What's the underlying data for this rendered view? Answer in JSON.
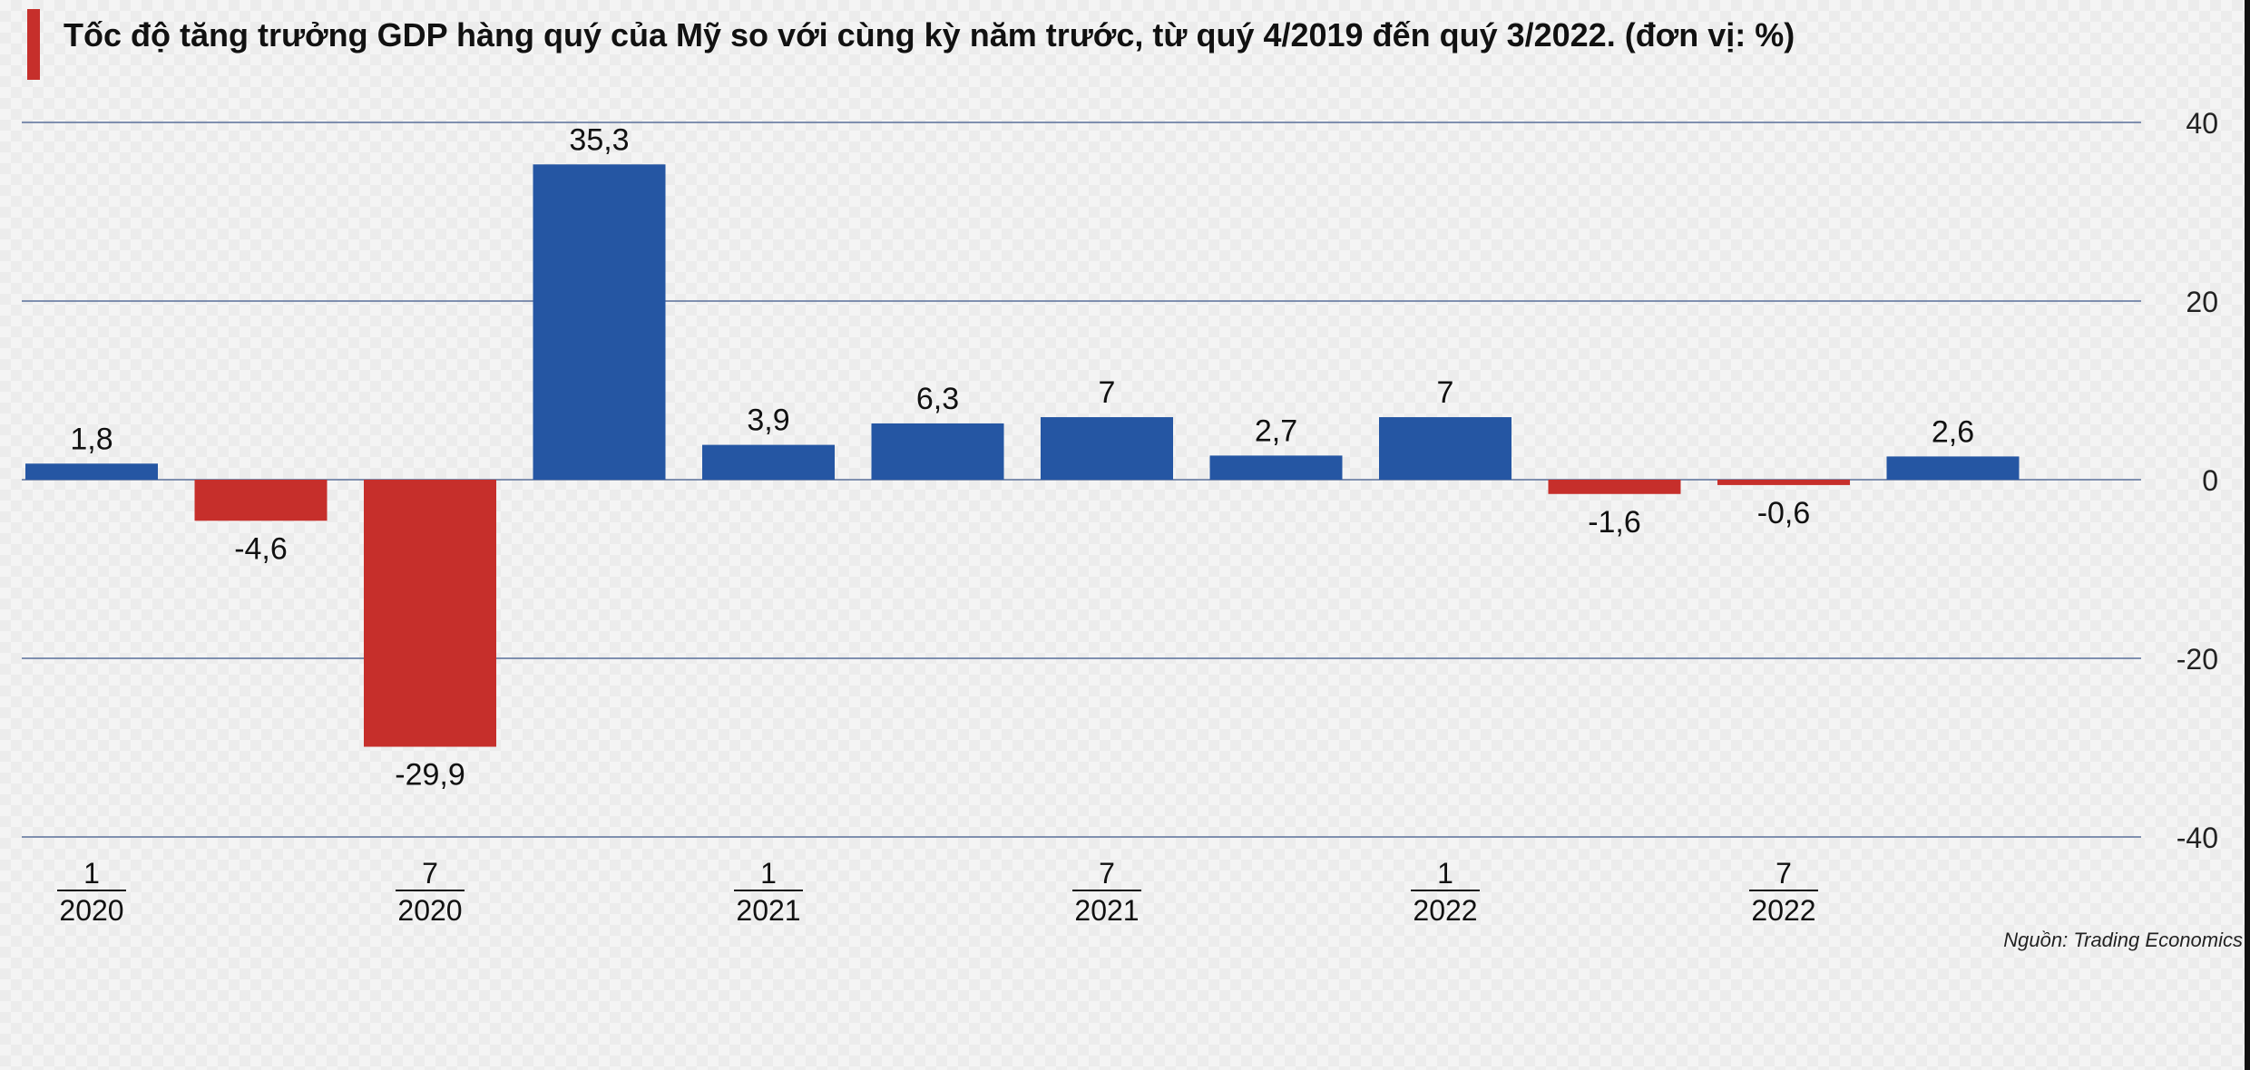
{
  "title": "Tốc độ tăng trưởng GDP hàng quý của Mỹ so với cùng kỳ năm trước, từ quý 4/2019 đến quý 3/2022. (đơn vị: %)",
  "source": "Nguồn: Trading Economics",
  "colors": {
    "positive": "#2556a3",
    "negative": "#c62f2b",
    "grid": "#5a6e9a",
    "accent": "#c62f2b"
  },
  "chart_data": {
    "type": "bar",
    "title": "Tốc độ tăng trưởng GDP hàng quý của Mỹ so với cùng kỳ năm trước, từ quý 4/2019 đến quý 3/2022. (đơn vị: %)",
    "values": [
      1.8,
      -4.6,
      -29.9,
      35.3,
      3.9,
      6.3,
      7,
      2.7,
      7,
      -1.6,
      -0.6,
      2.6
    ],
    "value_labels": [
      "1,8",
      "-4,6",
      "-29,9",
      "35,3",
      "3,9",
      "6,3",
      "7",
      "2,7",
      "7",
      "-1,6",
      "-0,6",
      "2,6"
    ],
    "x_ticks": [
      {
        "index": 0,
        "top": "1",
        "bottom": "2020"
      },
      {
        "index": 2,
        "top": "7",
        "bottom": "2020"
      },
      {
        "index": 4,
        "top": "1",
        "bottom": "2021"
      },
      {
        "index": 6,
        "top": "7",
        "bottom": "2021"
      },
      {
        "index": 8,
        "top": "1",
        "bottom": "2022"
      },
      {
        "index": 10,
        "top": "7",
        "bottom": "2022"
      }
    ],
    "y_ticks": [
      40,
      20,
      0,
      -20,
      -40
    ],
    "y_tick_labels": [
      "40",
      "20",
      "0",
      "-20",
      "-40"
    ],
    "ylim": [
      -40,
      40
    ],
    "grid": true,
    "y_axis_side": "right"
  }
}
